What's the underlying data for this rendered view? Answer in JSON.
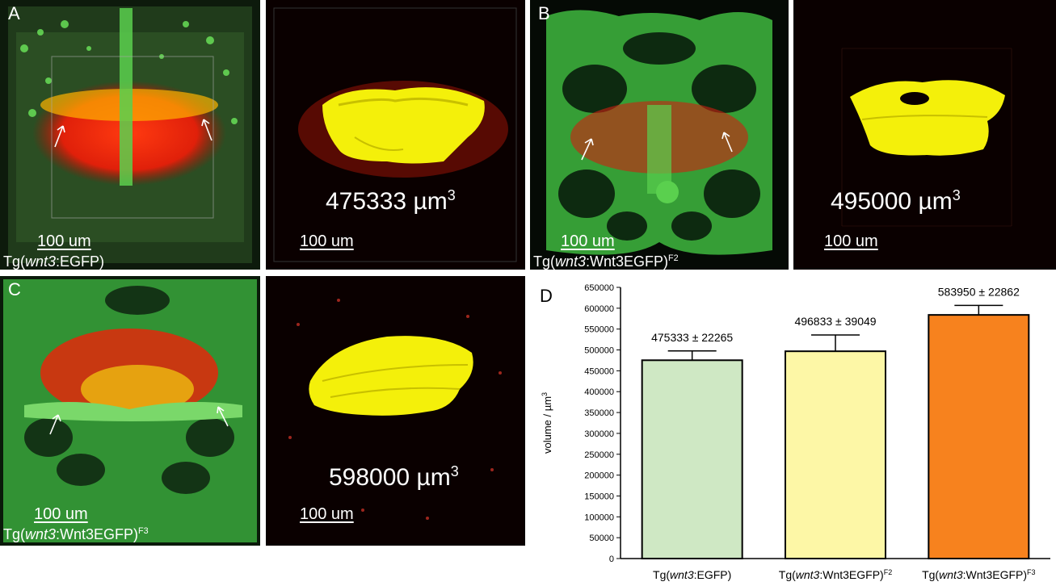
{
  "panels": [
    {
      "letter": "A",
      "scale": "100 um",
      "caption_prefix": "Tg(",
      "caption_gene": "wnt3",
      "caption_suffix": ":EGFP)",
      "caption_sup": ""
    },
    {
      "letter": "",
      "scale": "100 um",
      "volume": "475333 µm",
      "volume_sup": "3"
    },
    {
      "letter": "B",
      "scale": "100 um",
      "caption_prefix": "Tg(",
      "caption_gene": "wnt3",
      "caption_suffix": ":Wnt3EGFP)",
      "caption_sup": "F2"
    },
    {
      "letter": "",
      "scale": "100 um",
      "volume": "495000 µm",
      "volume_sup": "3"
    },
    {
      "letter": "C",
      "scale": "100 um",
      "caption_prefix": "Tg(",
      "caption_gene": "wnt3",
      "caption_suffix": ":Wnt3EGFP)",
      "caption_sup": "F3"
    },
    {
      "letter": "",
      "scale": "100 um",
      "volume": "598000 µm",
      "volume_sup": "3"
    }
  ],
  "chart_data": {
    "type": "bar",
    "panel_letter": "D",
    "ylabel": "volume / µm",
    "ylabel_sup": "3",
    "ylim": [
      0,
      650000
    ],
    "yticks": [
      0,
      50000,
      100000,
      150000,
      200000,
      250000,
      300000,
      350000,
      400000,
      450000,
      500000,
      550000,
      600000,
      650000
    ],
    "categories": [
      {
        "prefix": "Tg(",
        "gene": "wnt3",
        "suffix": ":EGFP)",
        "sup": ""
      },
      {
        "prefix": "Tg(",
        "gene": "wnt3",
        "suffix": ":Wnt3EGFP)",
        "sup": "F2"
      },
      {
        "prefix": "Tg(",
        "gene": "wnt3",
        "suffix": ":Wnt3EGFP)",
        "sup": "F3"
      }
    ],
    "values": [
      475333,
      496833,
      583950
    ],
    "errors": [
      22265,
      39049,
      22862
    ],
    "value_labels": [
      "475333 ± 22265",
      "496833 ± 39049",
      "583950 ± 22862"
    ],
    "colors": [
      "#cfe8c4",
      "#fdf7a6",
      "#f7821e"
    ]
  }
}
